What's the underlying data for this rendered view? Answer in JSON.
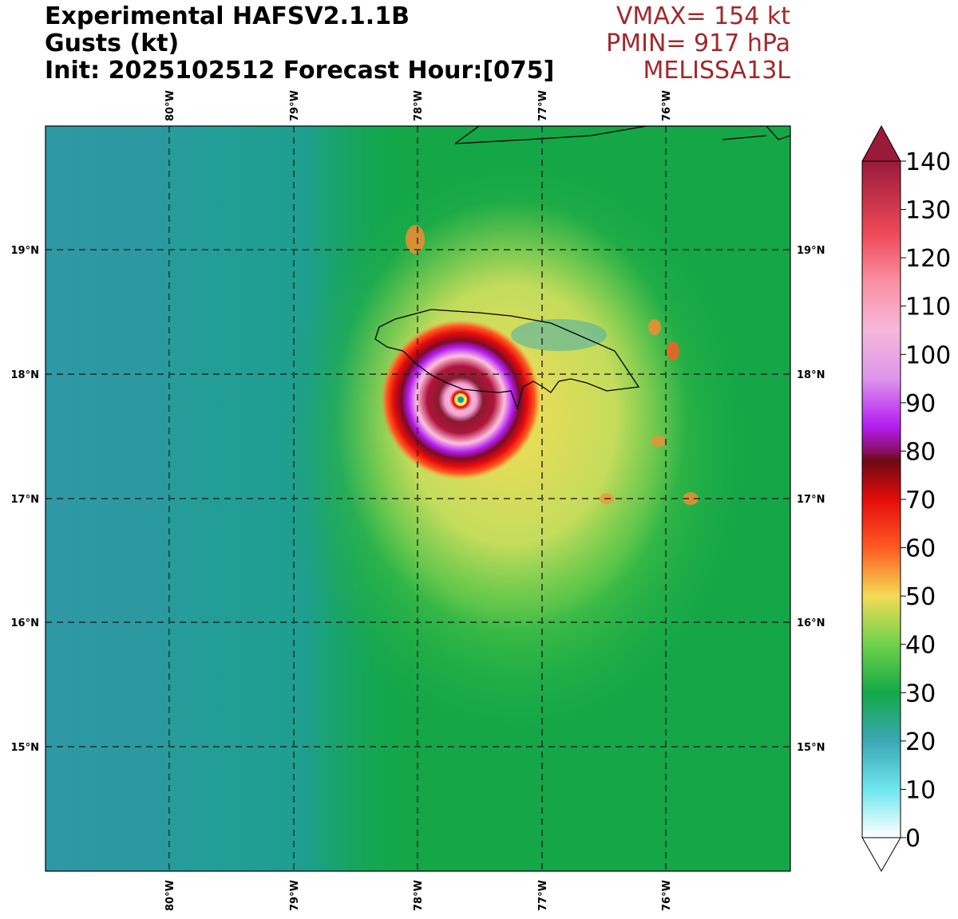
{
  "header": {
    "line1": "Experimental HAFSV2.1.1B",
    "line2": "Gusts (kt)",
    "line3": "Init: 2025102512 Forecast Hour:[075]"
  },
  "info": {
    "vmax": "VMAX= 154 kt",
    "pmin": "PMIN= 917 hPa",
    "storm": "MELISSA13L"
  },
  "map": {
    "lon_labels": [
      "80°W",
      "79°W",
      "78°W",
      "77°W",
      "76°W"
    ],
    "lat_labels": [
      "19°N",
      "18°N",
      "17°N",
      "16°N",
      "15°N"
    ]
  },
  "colorbar": {
    "ticks": [
      "140",
      "130",
      "120",
      "110",
      "100",
      "90",
      "80",
      "70",
      "60",
      "50",
      "40",
      "30",
      "20",
      "10",
      "0"
    ],
    "stops": [
      {
        "v": 0,
        "c": "#ffffff"
      },
      {
        "v": 10,
        "c": "#6fe6ef"
      },
      {
        "v": 20,
        "c": "#3aa8b4"
      },
      {
        "v": 30,
        "c": "#13a947"
      },
      {
        "v": 40,
        "c": "#6fd24b"
      },
      {
        "v": 50,
        "c": "#f3dc55"
      },
      {
        "v": 60,
        "c": "#ff5a22"
      },
      {
        "v": 70,
        "c": "#e50b0b"
      },
      {
        "v": 78,
        "c": "#6d0a14"
      },
      {
        "v": 80,
        "c": "#8a0f66"
      },
      {
        "v": 85,
        "c": "#b21cf0"
      },
      {
        "v": 95,
        "c": "#dd95ec"
      },
      {
        "v": 105,
        "c": "#f6b8da"
      },
      {
        "v": 115,
        "c": "#fb8fa3"
      },
      {
        "v": 125,
        "c": "#ee4a58"
      },
      {
        "v": 140,
        "c": "#9a1a3c"
      }
    ]
  }
}
